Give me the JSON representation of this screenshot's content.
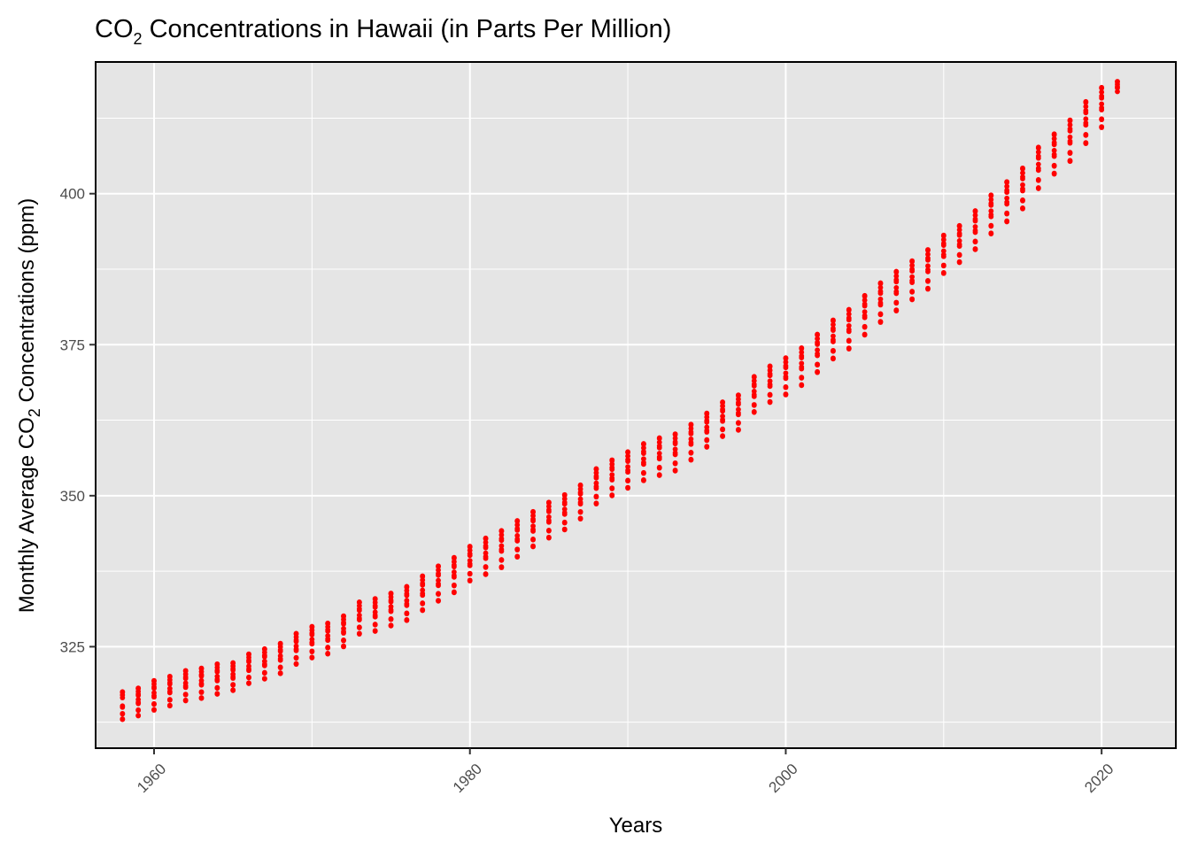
{
  "chart_data": {
    "type": "scatter",
    "title_main": "CO",
    "title_sub": "2",
    "title_rest": " Concentrations in Hawaii (in Parts Per Million)",
    "xlabel": "Years",
    "ylabel_a": "Monthly Average CO",
    "ylabel_sub": "2",
    "ylabel_b": " Concentrations (ppm)",
    "xlim": [
      1956.3,
      2024.7
    ],
    "ylim": [
      308.2,
      421.8
    ],
    "x_ticks": [
      1960,
      1980,
      2000,
      2020
    ],
    "x_tick_labels": [
      "1960",
      "1980",
      "2000",
      "2020"
    ],
    "y_ticks": [
      325,
      350,
      375,
      400
    ],
    "y_tick_labels": [
      "325",
      "350",
      "375",
      "400"
    ],
    "grid": true,
    "legend": "none",
    "point_color": "#ff0000",
    "background_color": "#e5e5e5",
    "years": [
      1958,
      1959,
      1960,
      1961,
      1962,
      1963,
      1964,
      1965,
      1966,
      1967,
      1968,
      1969,
      1970,
      1971,
      1972,
      1973,
      1974,
      1975,
      1976,
      1977,
      1978,
      1979,
      1980,
      1981,
      1982,
      1983,
      1984,
      1985,
      1986,
      1987,
      1988,
      1989,
      1990,
      1991,
      1992,
      1993,
      1994,
      1995,
      1996,
      1997,
      1998,
      1999,
      2000,
      2001,
      2002,
      2003,
      2004,
      2005,
      2006,
      2007,
      2008,
      2009,
      2010,
      2011,
      2012,
      2013,
      2014,
      2015,
      2016,
      2017,
      2018,
      2019,
      2020,
      2021
    ],
    "annual_mean_ppm": [
      315.2,
      315.8,
      316.9,
      317.6,
      318.5,
      318.9,
      319.6,
      320.0,
      321.3,
      322.1,
      323.0,
      324.6,
      325.7,
      326.3,
      327.5,
      329.7,
      330.2,
      331.1,
      332.1,
      333.8,
      335.4,
      336.8,
      338.7,
      339.9,
      341.1,
      342.8,
      344.4,
      345.9,
      347.2,
      348.9,
      351.5,
      352.9,
      354.2,
      355.5,
      356.4,
      357.1,
      358.8,
      360.8,
      362.6,
      363.7,
      366.7,
      368.4,
      369.7,
      371.3,
      373.5,
      375.8,
      377.5,
      379.8,
      381.9,
      383.8,
      385.6,
      387.4,
      389.9,
      391.6,
      393.9,
      396.5,
      398.6,
      400.8,
      404.2,
      406.5,
      408.7,
      411.7,
      414.2,
      416.5
    ],
    "seasonal_amplitude_ppm": [
      4.5,
      4.5,
      4.8,
      4.8,
      4.9,
      4.9,
      4.9,
      4.5,
      4.8,
      4.9,
      4.9,
      5.0,
      5.1,
      5.0,
      5.0,
      5.2,
      5.3,
      5.3,
      5.5,
      5.6,
      5.7,
      5.7,
      5.6,
      5.9,
      6.0,
      5.9,
      5.7,
      5.8,
      5.7,
      5.5,
      5.7,
      5.8,
      5.9,
      6.0,
      6.1,
      6.0,
      5.8,
      5.5,
      5.6,
      5.7,
      5.8,
      5.9,
      6.0,
      6.1,
      6.2,
      6.3,
      6.4,
      6.4,
      6.4,
      6.4,
      6.3,
      6.4,
      6.2,
      6.0,
      6.3,
      6.3,
      6.5,
      6.6,
      6.7,
      6.5,
      6.7,
      6.8,
      6.5,
      4.0
    ],
    "months_recorded": [
      10,
      12,
      12,
      12,
      12,
      12,
      12,
      12,
      12,
      12,
      12,
      12,
      12,
      12,
      12,
      12,
      12,
      12,
      12,
      12,
      12,
      12,
      12,
      12,
      12,
      12,
      12,
      12,
      12,
      12,
      12,
      12,
      12,
      12,
      12,
      12,
      12,
      12,
      12,
      12,
      12,
      12,
      12,
      12,
      12,
      12,
      12,
      12,
      12,
      12,
      12,
      12,
      12,
      12,
      12,
      12,
      12,
      12,
      12,
      12,
      12,
      12,
      12,
      6
    ]
  }
}
